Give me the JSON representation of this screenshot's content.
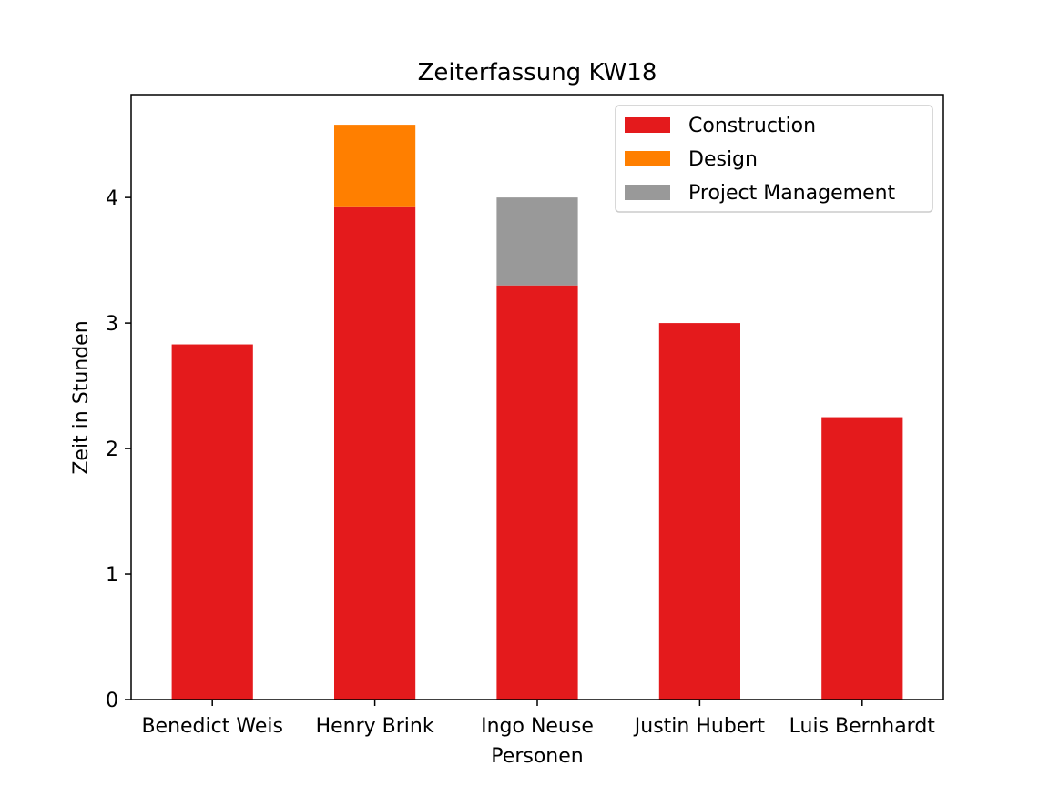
{
  "chart_data": {
    "type": "bar",
    "stacked": true,
    "title": "Zeiterfassung KW18",
    "xlabel": "Personen",
    "ylabel": "Zeit in Stunden",
    "categories": [
      "Benedict Weis",
      "Henry Brink",
      "Ingo Neuse",
      "Justin Hubert",
      "Luis Bernhardt"
    ],
    "series": [
      {
        "name": "Construction",
        "color": "#e41a1c",
        "values": [
          2.83,
          3.93,
          3.3,
          3.0,
          2.25
        ]
      },
      {
        "name": "Design",
        "color": "#ff7f00",
        "values": [
          0,
          0.65,
          0,
          0,
          0
        ]
      },
      {
        "name": "Project Management",
        "color": "#999999",
        "values": [
          0,
          0,
          0.7,
          0,
          0
        ]
      }
    ],
    "ylim": [
      0,
      4.82
    ],
    "yticks": [
      0,
      1,
      2,
      3,
      4
    ],
    "grid": false,
    "legend": "top-right"
  }
}
